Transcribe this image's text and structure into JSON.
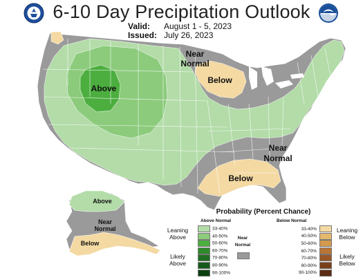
{
  "header": {
    "title": "6-10 Day Precipitation Outlook",
    "valid_label": "Valid:",
    "valid_value": "August 1 - 5, 2023",
    "issued_label": "Issued:",
    "issued_value": "July 26, 2023"
  },
  "logos": {
    "left": "doc-seal-icon",
    "right": "noaa-logo-icon"
  },
  "regions": {
    "above_west": "Above",
    "near_north_1": "Near",
    "near_north_2": "Normal",
    "below_midwest": "Below",
    "near_southeast_1": "Near",
    "near_southeast_2": "Normal",
    "below_gulf": "Below",
    "alaska_above": "Above",
    "alaska_near_1": "Near",
    "alaska_near_2": "Normal",
    "alaska_below": "Below"
  },
  "legend": {
    "title": "Probability (Percent Chance)",
    "above_header": "Above Normal",
    "below_header": "Below Normal",
    "near_header_1": "Near",
    "near_header_2": "Normal",
    "leaning_above_1": "Leaning",
    "leaning_above_2": "Above",
    "likely_above_1": "Likely",
    "likely_above_2": "Above",
    "leaning_below_1": "Leaning",
    "leaning_below_2": "Below",
    "likely_below_1": "Likely",
    "likely_below_2": "Below",
    "ranges": [
      "33-40%",
      "40-50%",
      "50-60%",
      "60-70%",
      "70-80%",
      "80-90%",
      "90-100%"
    ],
    "above_colors": [
      "#b3dca8",
      "#8ccb7c",
      "#4cae3f",
      "#2e8a2b",
      "#1f6e22",
      "#155a1a",
      "#0c400f"
    ],
    "below_colors": [
      "#f4d9a3",
      "#e4b96e",
      "#d39a4d",
      "#b97536",
      "#9a5725",
      "#7a4019",
      "#5c2d12"
    ],
    "near_color": "#9a9a9a"
  },
  "colors": {
    "near_gray": "#9a9a9a",
    "above_33": "#b3dca8",
    "above_40": "#8ccb7c",
    "above_50": "#4cae3f",
    "below_33": "#f4d9a3",
    "border": "#ffffff"
  }
}
